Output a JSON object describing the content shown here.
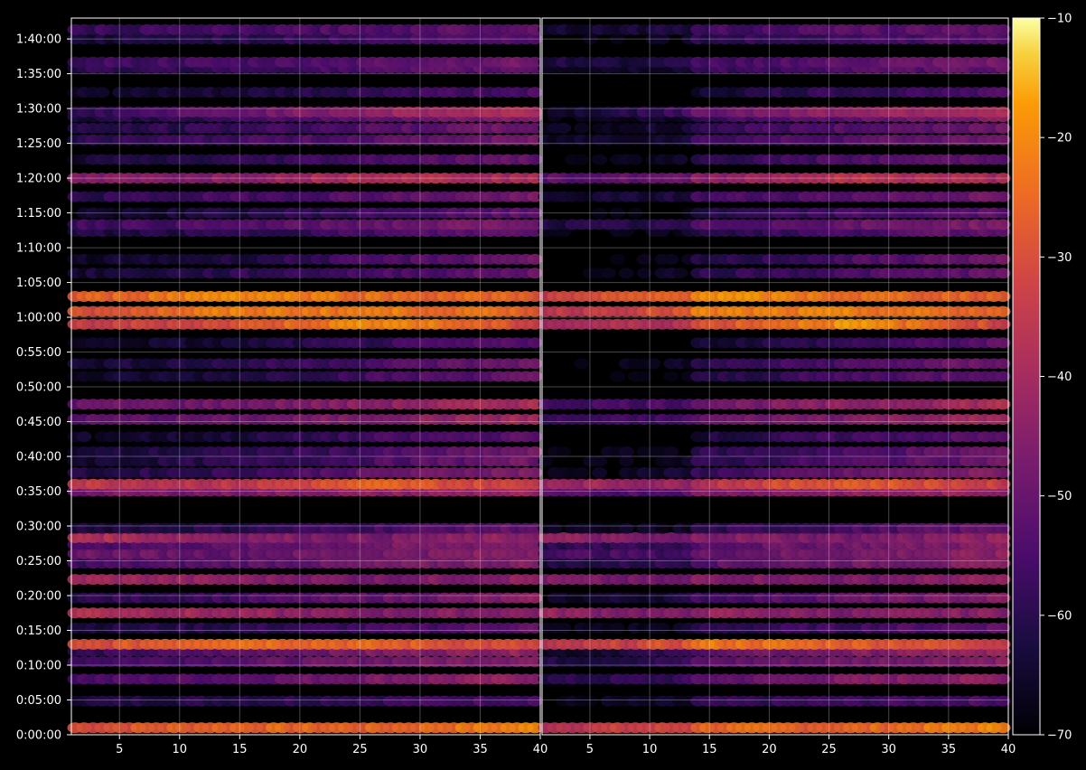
{
  "chart_data": {
    "type": "heatmap",
    "title": "",
    "xlabel": "",
    "ylabel": "",
    "panels": [
      {
        "name": "",
        "xlim": [
          1,
          40
        ]
      },
      {
        "name": "",
        "xlim": [
          1,
          40
        ]
      }
    ],
    "x_ticks": [
      "5",
      "10",
      "15",
      "20",
      "25",
      "30",
      "35",
      "40"
    ],
    "x_tick_values": [
      5,
      10,
      15,
      20,
      25,
      30,
      35,
      40
    ],
    "ylim_seconds": [
      0,
      6180
    ],
    "y_ticks": [
      "0:00:00",
      "0:05:00",
      "0:10:00",
      "0:15:00",
      "0:20:00",
      "0:25:00",
      "0:30:00",
      "0:35:00",
      "0:40:00",
      "0:45:00",
      "0:50:00",
      "0:55:00",
      "1:00:00",
      "1:05:00",
      "1:10:00",
      "1:15:00",
      "1:20:00",
      "1:25:00",
      "1:30:00",
      "1:35:00",
      "1:40:00"
    ],
    "colorbar": {
      "colormap": "inferno",
      "range": [
        -70,
        -10
      ],
      "ticks": [
        "−10",
        "−20",
        "−30",
        "−40",
        "−50",
        "−60",
        "−70"
      ],
      "tick_values": [
        -10,
        -20,
        -30,
        -40,
        -50,
        -60,
        -70
      ]
    },
    "grid": true,
    "background": "#000000",
    "rows": [
      {
        "t": 60,
        "strength": [
          -30,
          -25,
          -26,
          -20
        ]
      },
      {
        "t": 290,
        "strength": [
          -62,
          -60,
          -57,
          -54
        ]
      },
      {
        "t": 480,
        "strength": [
          -55,
          -52,
          -46,
          -43
        ]
      },
      {
        "t": 630,
        "strength": [
          -56,
          -52,
          -48,
          -44
        ]
      },
      {
        "t": 720,
        "strength": [
          -60,
          -52,
          -46,
          -42
        ]
      },
      {
        "t": 780,
        "strength": [
          -32,
          -22,
          -26,
          -32
        ]
      },
      {
        "t": 920,
        "strength": [
          -62,
          -60,
          -56,
          -50
        ]
      },
      {
        "t": 1050,
        "strength": [
          -36,
          -42,
          -46,
          -44
        ]
      },
      {
        "t": 1180,
        "strength": [
          -60,
          -56,
          -50,
          -45
        ]
      },
      {
        "t": 1340,
        "strength": [
          -40,
          -44,
          -47,
          -43
        ]
      },
      {
        "t": 1480,
        "strength": [
          -56,
          -52,
          -48,
          -45
        ]
      },
      {
        "t": 1560,
        "strength": [
          -48,
          -50,
          -47,
          -44
        ]
      },
      {
        "t": 1640,
        "strength": [
          -54,
          -52,
          -48,
          -45
        ]
      },
      {
        "t": 1700,
        "strength": [
          -36,
          -44,
          -47,
          -43
        ]
      },
      {
        "t": 1780,
        "strength": [
          -62,
          -60,
          -55,
          -50
        ]
      },
      {
        "t": 2100,
        "strength": [
          -48,
          -46,
          -44,
          -42
        ]
      },
      {
        "t": 2160,
        "strength": [
          -34,
          -36,
          -26,
          -34
        ]
      },
      {
        "t": 2260,
        "strength": [
          -62,
          -58,
          -50,
          -45
        ]
      },
      {
        "t": 2360,
        "strength": [
          -64,
          -60,
          -54,
          -48
        ]
      },
      {
        "t": 2440,
        "strength": [
          -64,
          -60,
          -55,
          -48
        ]
      },
      {
        "t": 2570,
        "strength": [
          -66,
          -63,
          -56,
          -52
        ]
      },
      {
        "t": 2720,
        "strength": [
          -52,
          -50,
          -45,
          -40
        ]
      },
      {
        "t": 2850,
        "strength": [
          -50,
          -48,
          -44,
          -38
        ]
      },
      {
        "t": 3090,
        "strength": [
          -66,
          -62,
          -55,
          -50
        ]
      },
      {
        "t": 3200,
        "strength": [
          -64,
          -60,
          -54,
          -48
        ]
      },
      {
        "t": 3380,
        "strength": [
          -66,
          -64,
          -58,
          -52
        ]
      },
      {
        "t": 3540,
        "strength": [
          -34,
          -30,
          -18,
          -32
        ]
      },
      {
        "t": 3650,
        "strength": [
          -30,
          -22,
          -22,
          -26
        ]
      },
      {
        "t": 3780,
        "strength": [
          -28,
          -18,
          -24,
          -26
        ]
      },
      {
        "t": 3980,
        "strength": [
          -64,
          -60,
          -55,
          -50
        ]
      },
      {
        "t": 4100,
        "strength": [
          -66,
          -62,
          -55,
          -48
        ]
      },
      {
        "t": 4340,
        "strength": [
          -62,
          -60,
          -55,
          -50
        ]
      },
      {
        "t": 4400,
        "strength": [
          -56,
          -54,
          -50,
          -46
        ]
      },
      {
        "t": 4500,
        "strength": [
          -66,
          -62,
          -56,
          -52
        ]
      },
      {
        "t": 4640,
        "strength": [
          -60,
          -56,
          -52,
          -48
        ]
      },
      {
        "t": 4800,
        "strength": [
          -46,
          -44,
          -36,
          -40
        ]
      },
      {
        "t": 4960,
        "strength": [
          -64,
          -60,
          -54,
          -50
        ]
      },
      {
        "t": 5130,
        "strength": [
          -60,
          -56,
          -52,
          -48
        ]
      },
      {
        "t": 5230,
        "strength": [
          -62,
          -58,
          -53,
          -48
        ]
      },
      {
        "t": 5330,
        "strength": [
          -62,
          -58,
          -50,
          -45
        ]
      },
      {
        "t": 5370,
        "strength": [
          -60,
          -50,
          -42,
          -38
        ]
      },
      {
        "t": 5540,
        "strength": [
          -66,
          -64,
          -58,
          -54
        ]
      },
      {
        "t": 5750,
        "strength": [
          -60,
          -58,
          -54,
          -50
        ]
      },
      {
        "t": 5800,
        "strength": [
          -56,
          -56,
          -52,
          -48
        ]
      },
      {
        "t": 6000,
        "strength": [
          -64,
          -60,
          -56,
          -52
        ]
      },
      {
        "t": 6080,
        "strength": [
          -58,
          -56,
          -53,
          -50
        ]
      }
    ]
  }
}
